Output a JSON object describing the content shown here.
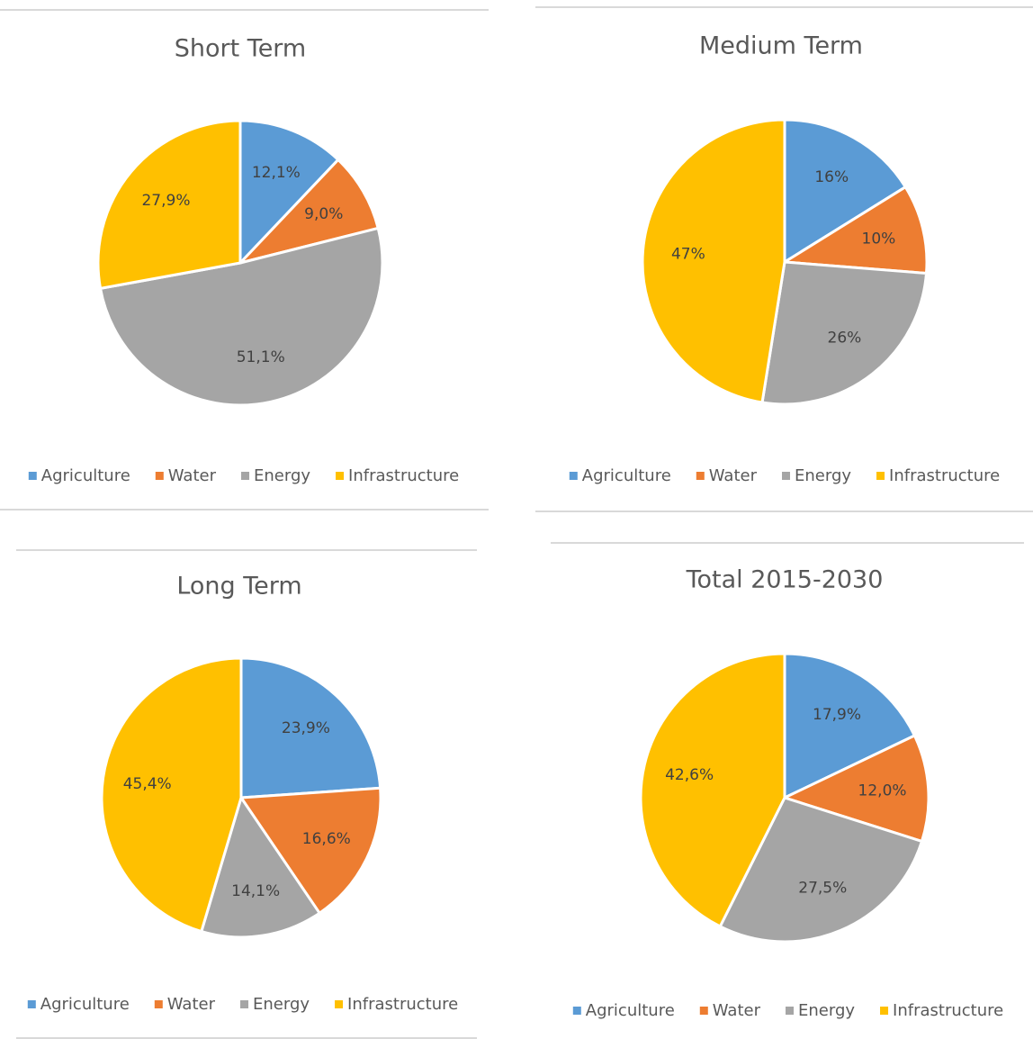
{
  "chart_data": [
    {
      "type": "pie",
      "title": "Short Term",
      "categories": [
        "Agriculture",
        "Water",
        "Energy",
        "Infrastructure"
      ],
      "values": [
        12.1,
        9.0,
        51.1,
        27.9
      ],
      "value_labels": [
        "12,1%",
        "9,0%",
        "51,1%",
        "27,9%"
      ],
      "colors": [
        "#5b9bd5",
        "#ed7d31",
        "#a5a5a5",
        "#ffc000"
      ],
      "legend": "bottom"
    },
    {
      "type": "pie",
      "title": "Medium Term",
      "categories": [
        "Agriculture",
        "Water",
        "Energy",
        "Infrastructure"
      ],
      "values": [
        16,
        10,
        26,
        47
      ],
      "value_labels": [
        "16%",
        "10%",
        "26%",
        "47%"
      ],
      "colors": [
        "#5b9bd5",
        "#ed7d31",
        "#a5a5a5",
        "#ffc000"
      ],
      "legend": "bottom"
    },
    {
      "type": "pie",
      "title": "Long Term",
      "categories": [
        "Agriculture",
        "Water",
        "Energy",
        "Infrastructure"
      ],
      "values": [
        23.9,
        16.6,
        14.1,
        45.4
      ],
      "value_labels": [
        "23,9%",
        "16,6%",
        "14,1%",
        "45,4%"
      ],
      "colors": [
        "#5b9bd5",
        "#ed7d31",
        "#a5a5a5",
        "#ffc000"
      ],
      "legend": "bottom"
    },
    {
      "type": "pie",
      "title": "Total 2015-2030",
      "categories": [
        "Agriculture",
        "Water",
        "Energy",
        "Infrastructure"
      ],
      "values": [
        17.9,
        12.0,
        27.5,
        42.6
      ],
      "value_labels": [
        "17,9%",
        "12,0%",
        "27,5%",
        "42,6%"
      ],
      "colors": [
        "#5b9bd5",
        "#ed7d31",
        "#a5a5a5",
        "#ffc000"
      ],
      "legend": "bottom"
    }
  ]
}
